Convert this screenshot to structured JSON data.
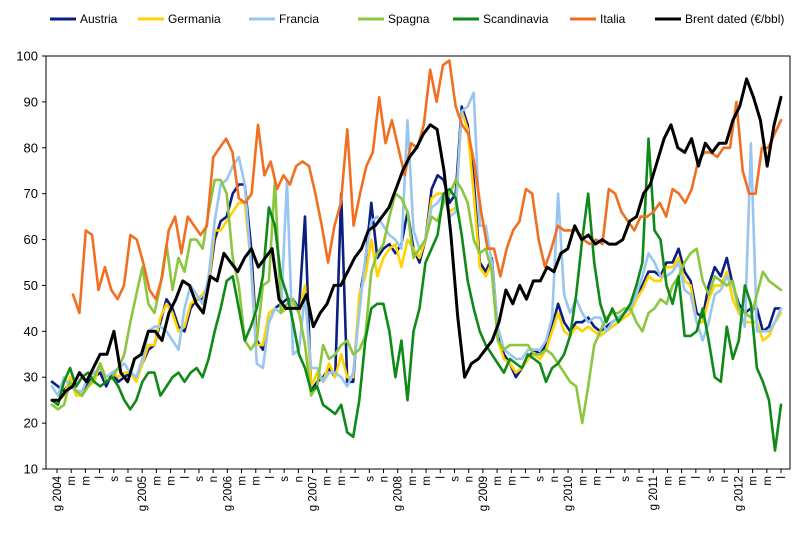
{
  "chart_data": {
    "type": "line",
    "title": "",
    "xlabel": "",
    "ylabel": "",
    "ylim": [
      10,
      100
    ],
    "y_ticks": [
      "10",
      "20",
      "30",
      "40",
      "50",
      "60",
      "70",
      "80",
      "90",
      "100"
    ],
    "grid": false,
    "legend_placement": "top",
    "x_tick_labels": [
      "g 2004",
      "m",
      "m",
      "l",
      "s",
      "n",
      "g 2005",
      "m",
      "m",
      "l",
      "s",
      "n",
      "g 2006",
      "m",
      "m",
      "l",
      "s",
      "n",
      "g 2007",
      "m",
      "m",
      "l",
      "s",
      "n",
      "g 2008",
      "m",
      "m",
      "l",
      "s",
      "n",
      "g 2009",
      "m",
      "m",
      "l",
      "s",
      "n",
      "g 2010",
      "m",
      "m",
      "l",
      "s",
      "n",
      "g 2011",
      "m",
      "m",
      "l",
      "s",
      "n",
      "g 2012",
      "m",
      "m",
      "l"
    ],
    "series": [
      {
        "name": "Austria",
        "color": "#0b1f80",
        "values": [
          29,
          28,
          27,
          29,
          27,
          26,
          29,
          30,
          31,
          28,
          31,
          29,
          30,
          31,
          30,
          33,
          36,
          37,
          42,
          47,
          45,
          41,
          40,
          45,
          47,
          47,
          50,
          60,
          64,
          65,
          70,
          72,
          72,
          59,
          38,
          36,
          42,
          45,
          46,
          47,
          47,
          45,
          65,
          27,
          29,
          30,
          32,
          30,
          70,
          29,
          29,
          47,
          55,
          68,
          56,
          58,
          59,
          57,
          59,
          66,
          58,
          55,
          60,
          71,
          74,
          73,
          68,
          70,
          89,
          85,
          73,
          55,
          53,
          56,
          40,
          35,
          33,
          30,
          32,
          34,
          36,
          35,
          37,
          41,
          46,
          42,
          40,
          42,
          42,
          43,
          41,
          40,
          41,
          42,
          43,
          44,
          45,
          48,
          50,
          53,
          53,
          52,
          55,
          55,
          58,
          53,
          51,
          44,
          43,
          50,
          54,
          52,
          56,
          50,
          46,
          44,
          45,
          45,
          40,
          41,
          45,
          45
        ]
      },
      {
        "name": "Germania",
        "color": "#ffd200",
        "values": [
          25,
          25,
          26,
          30,
          26,
          26,
          28,
          29,
          33,
          30,
          31,
          30,
          31,
          31,
          29,
          33,
          37,
          37,
          43,
          46,
          44,
          40,
          41,
          46,
          47,
          48,
          50,
          62,
          62,
          64,
          66,
          68,
          68,
          55,
          37,
          37,
          44,
          45,
          44,
          45,
          46,
          44,
          50,
          28,
          31,
          29,
          33,
          30,
          35,
          30,
          30,
          48,
          52,
          60,
          52,
          56,
          58,
          59,
          54,
          60,
          58,
          56,
          60,
          69,
          70,
          70,
          66,
          67,
          88,
          84,
          70,
          54,
          52,
          55,
          38,
          34,
          33,
          31,
          32,
          34,
          35,
          34,
          36,
          40,
          44,
          40,
          39,
          41,
          40,
          41,
          40,
          39,
          40,
          41,
          42,
          43,
          44,
          47,
          49,
          52,
          51,
          51,
          54,
          54,
          56,
          51,
          50,
          42,
          42,
          47,
          50,
          50,
          53,
          47,
          44,
          42,
          42,
          42,
          38,
          39,
          42,
          44
        ]
      },
      {
        "name": "Francia",
        "color": "#99c6f0",
        "values": [
          28,
          26,
          30,
          28,
          27,
          27,
          30,
          31,
          32,
          30,
          31,
          32,
          33,
          31,
          30,
          34,
          40,
          41,
          41,
          40,
          38,
          36,
          45,
          50,
          48,
          46,
          52,
          64,
          72,
          73,
          76,
          78,
          72,
          55,
          33,
          32,
          42,
          45,
          44,
          73,
          35,
          36,
          48,
          32,
          32,
          29,
          31,
          31,
          30,
          28,
          31,
          44,
          56,
          64,
          65,
          63,
          61,
          60,
          58,
          86,
          62,
          58,
          60,
          67,
          68,
          70,
          65,
          66,
          88,
          89,
          92,
          63,
          63,
          55,
          41,
          36,
          35,
          34,
          34,
          36,
          36,
          36,
          38,
          43,
          70,
          48,
          44,
          47,
          44,
          42,
          43,
          43,
          40,
          42,
          43,
          44,
          45,
          48,
          52,
          57,
          55,
          52,
          52,
          53,
          55,
          49,
          48,
          42,
          38,
          42,
          48,
          49,
          52,
          50,
          45,
          41,
          81,
          40,
          40,
          40,
          42,
          45
        ]
      },
      {
        "name": "Spagna",
        "color": "#8cc63f",
        "values": [
          24,
          23,
          24,
          29,
          27,
          26,
          28,
          30,
          33,
          29,
          30,
          32,
          35,
          42,
          48,
          54,
          46,
          44,
          50,
          59,
          49,
          56,
          53,
          60,
          60,
          58,
          66,
          73,
          73,
          70,
          56,
          50,
          38,
          36,
          38,
          50,
          51,
          73,
          44,
          46,
          47,
          44,
          37,
          26,
          28,
          37,
          34,
          35,
          37,
          38,
          35,
          36,
          39,
          53,
          57,
          59,
          65,
          70,
          69,
          66,
          56,
          58,
          60,
          65,
          64,
          68,
          70,
          73,
          71,
          68,
          60,
          57,
          58,
          53,
          38,
          36,
          37,
          37,
          37,
          37,
          35,
          35,
          36,
          35,
          33,
          31,
          29,
          28,
          20,
          28,
          37,
          40,
          43,
          44,
          44,
          45,
          45,
          42,
          40,
          44,
          45,
          47,
          46,
          50,
          52,
          55,
          57,
          58,
          51,
          48,
          52,
          51,
          50,
          51,
          45,
          44,
          43,
          48,
          53,
          51,
          50,
          49
        ]
      },
      {
        "name": "Scandinavia",
        "color": "#0f8a17",
        "values": [
          25,
          24,
          29,
          32,
          28,
          30,
          31,
          29,
          28,
          29,
          30,
          28,
          25,
          23,
          25,
          29,
          31,
          31,
          26,
          28,
          30,
          31,
          29,
          31,
          32,
          30,
          34,
          40,
          45,
          51,
          52,
          45,
          38,
          41,
          45,
          52,
          67,
          63,
          52,
          48,
          42,
          35,
          32,
          27,
          28,
          24,
          23,
          22,
          24,
          18,
          17,
          25,
          38,
          45,
          46,
          46,
          40,
          30,
          38,
          25,
          40,
          45,
          55,
          58,
          61,
          70,
          71,
          69,
          61,
          51,
          45,
          40,
          37,
          35,
          33,
          31,
          34,
          33,
          32,
          35,
          34,
          33,
          29,
          32,
          33,
          35,
          39,
          48,
          60,
          70,
          55,
          46,
          42,
          45,
          42,
          44,
          46,
          50,
          55,
          82,
          62,
          60,
          50,
          46,
          52,
          39,
          39,
          40,
          45,
          38,
          30,
          29,
          41,
          34,
          38,
          50,
          46,
          32,
          29,
          25,
          14,
          24
        ]
      },
      {
        "name": "Italia",
        "color": "#f26f22",
        "values": [
          48,
          44,
          62,
          61,
          49,
          54,
          49,
          47,
          50,
          61,
          60,
          55,
          49,
          47,
          52,
          62,
          65,
          57,
          65,
          63,
          61,
          63,
          78,
          80,
          82,
          79,
          69,
          68,
          70,
          85,
          74,
          77,
          71,
          74,
          72,
          76,
          77,
          76,
          70,
          63,
          55,
          63,
          68,
          84,
          63,
          70,
          76,
          79,
          91,
          81,
          86,
          80,
          74,
          81,
          80,
          85,
          97,
          90,
          98,
          99,
          89,
          85,
          83,
          76,
          66,
          58,
          58,
          52,
          58,
          62,
          64,
          71,
          70,
          60,
          54,
          58,
          63,
          62,
          62,
          62,
          60,
          59,
          60,
          59,
          71,
          70,
          66,
          64,
          62,
          65,
          65,
          66,
          68,
          65,
          71,
          70,
          68,
          71,
          77,
          79,
          79,
          78,
          80,
          80,
          90,
          75,
          70,
          70,
          80,
          80,
          83,
          86
        ]
      },
      {
        "name": "Brent dated (€/bbl)",
        "color": "#000000",
        "values": [
          25,
          25,
          27,
          28,
          31,
          29,
          32,
          35,
          35,
          40,
          31,
          29,
          34,
          35,
          40,
          40,
          38,
          44,
          47,
          51,
          50,
          46,
          44,
          52,
          51,
          57,
          55,
          53,
          56,
          58,
          54,
          56,
          58,
          47,
          45,
          45,
          45,
          48,
          41,
          44,
          46,
          50,
          50,
          53,
          56,
          58,
          62,
          63,
          65,
          67,
          71,
          75,
          78,
          80,
          83,
          85,
          84,
          75,
          61,
          43,
          30,
          33,
          34,
          36,
          38,
          42,
          49,
          46,
          50,
          47,
          51,
          51,
          54,
          53,
          57,
          58,
          63,
          60,
          61,
          59,
          60,
          59,
          59,
          60,
          64,
          65,
          70,
          72,
          77,
          82,
          85,
          80,
          79,
          82,
          76,
          81,
          79,
          81,
          81,
          86,
          89,
          95,
          91,
          86,
          76,
          85,
          91
        ]
      }
    ]
  }
}
